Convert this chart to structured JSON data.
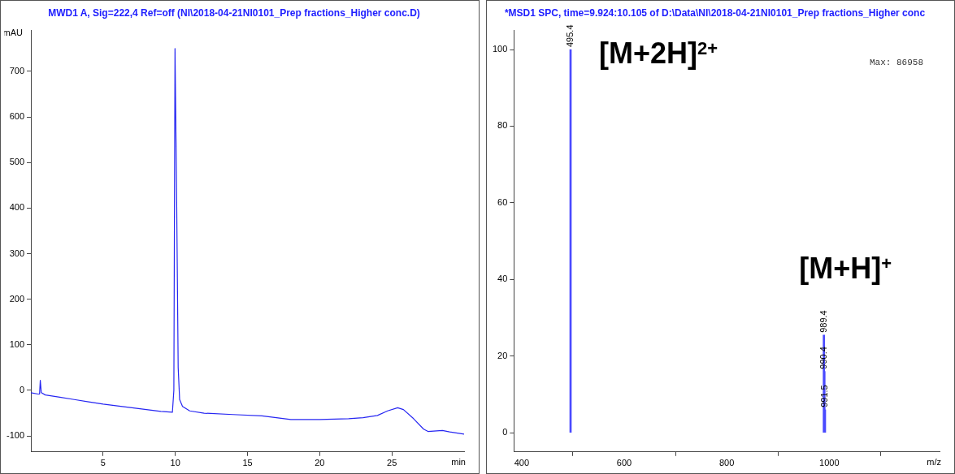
{
  "chart_data": [
    {
      "type": "line",
      "title": "MWD1 A, Sig=222,4 Ref=off (NI\\2018-04-21NI0101_Prep fractions_Higher conc.D)",
      "xlabel": "min",
      "ylabel": "mAU",
      "xlim": [
        0,
        30
      ],
      "ylim": [
        -135,
        790
      ],
      "xticks": [
        5,
        10,
        15,
        20,
        25
      ],
      "yticks": [
        -100,
        0,
        100,
        200,
        300,
        400,
        500,
        600,
        700
      ],
      "grid": false,
      "legend": false,
      "marker": "none",
      "line_style": "solid",
      "series": [
        {
          "color": "#2626f2",
          "x": [
            0,
            0.5,
            0.6,
            0.65,
            0.72,
            1,
            2,
            3,
            4,
            5,
            6,
            7,
            8,
            9,
            9.8,
            9.9,
            9.98,
            10.1,
            10.2,
            10.3,
            10.5,
            11,
            12,
            14,
            16,
            17,
            18,
            20,
            22,
            23,
            24,
            24.7,
            25.4,
            25.8,
            26.5,
            27.2,
            27.5,
            28.5,
            29,
            30
          ],
          "values": [
            -5,
            -8,
            -8,
            22,
            -5,
            -10,
            -15,
            -20,
            -25,
            -30,
            -34,
            -38,
            -42,
            -46,
            -48,
            0,
            750,
            400,
            50,
            -20,
            -35,
            -45,
            -50,
            -53,
            -56,
            -60,
            -64,
            -64,
            -62,
            -60,
            -55,
            -45,
            -38,
            -42,
            -62,
            -85,
            -90,
            -88,
            -91,
            -96
          ]
        }
      ]
    },
    {
      "type": "bar",
      "title": "*MSD1 SPC, time=9.924:10.105 of D:\\Data\\NI\\2018-04-21NI0101_Prep fractions_Higher conc",
      "xlabel": "m/z",
      "xlim": [
        385,
        1215
      ],
      "ylim": [
        -5,
        105
      ],
      "xticks": [
        400,
        600,
        800,
        1000
      ],
      "yticks": [
        0,
        20,
        40,
        60,
        80,
        100
      ],
      "grid": false,
      "legend": false,
      "series": [
        {
          "color": "#4a4aff",
          "x": [
            495.4,
            989.4,
            990.4,
            991.5
          ],
          "values": [
            100,
            25.5,
            16,
            6
          ]
        }
      ],
      "annotations": [
        "[M+2H]$^{2+}$",
        "[M+H]$^{+}$",
        "Max: 86958",
        {
          "text": "495.4",
          "x": 495.4,
          "y": 100
        },
        {
          "text": "989.4",
          "x": 989.4,
          "y": 25.5
        },
        {
          "text": "990.4",
          "x": 990.4,
          "y": 16
        },
        {
          "text": "991.5",
          "x": 991.5,
          "y": 6
        }
      ]
    }
  ]
}
